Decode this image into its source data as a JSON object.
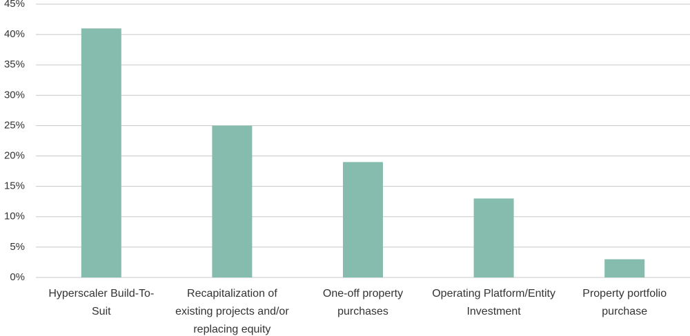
{
  "chart_data": {
    "type": "bar",
    "categories": [
      "Hyperscaler Build-To-Suit",
      "Recapitalization of existing projects and/or replacing equity",
      "One-off property purchases",
      "Operating Platform/Entity Investment",
      "Property portfolio purchase"
    ],
    "values": [
      41,
      25,
      19,
      13,
      3
    ],
    "color": "#85bcad",
    "ylim": [
      0,
      45
    ],
    "yticks": [
      {
        "value": 0,
        "label": "0%"
      },
      {
        "value": 5,
        "label": "5%"
      },
      {
        "value": 10,
        "label": "10%"
      },
      {
        "value": 15,
        "label": "15%"
      },
      {
        "value": 20,
        "label": "20%"
      },
      {
        "value": 25,
        "label": "25%"
      },
      {
        "value": 30,
        "label": "30%"
      },
      {
        "value": 35,
        "label": "35%"
      },
      {
        "value": 40,
        "label": "40%"
      },
      {
        "value": 45,
        "label": "45%"
      }
    ],
    "grid": true
  }
}
